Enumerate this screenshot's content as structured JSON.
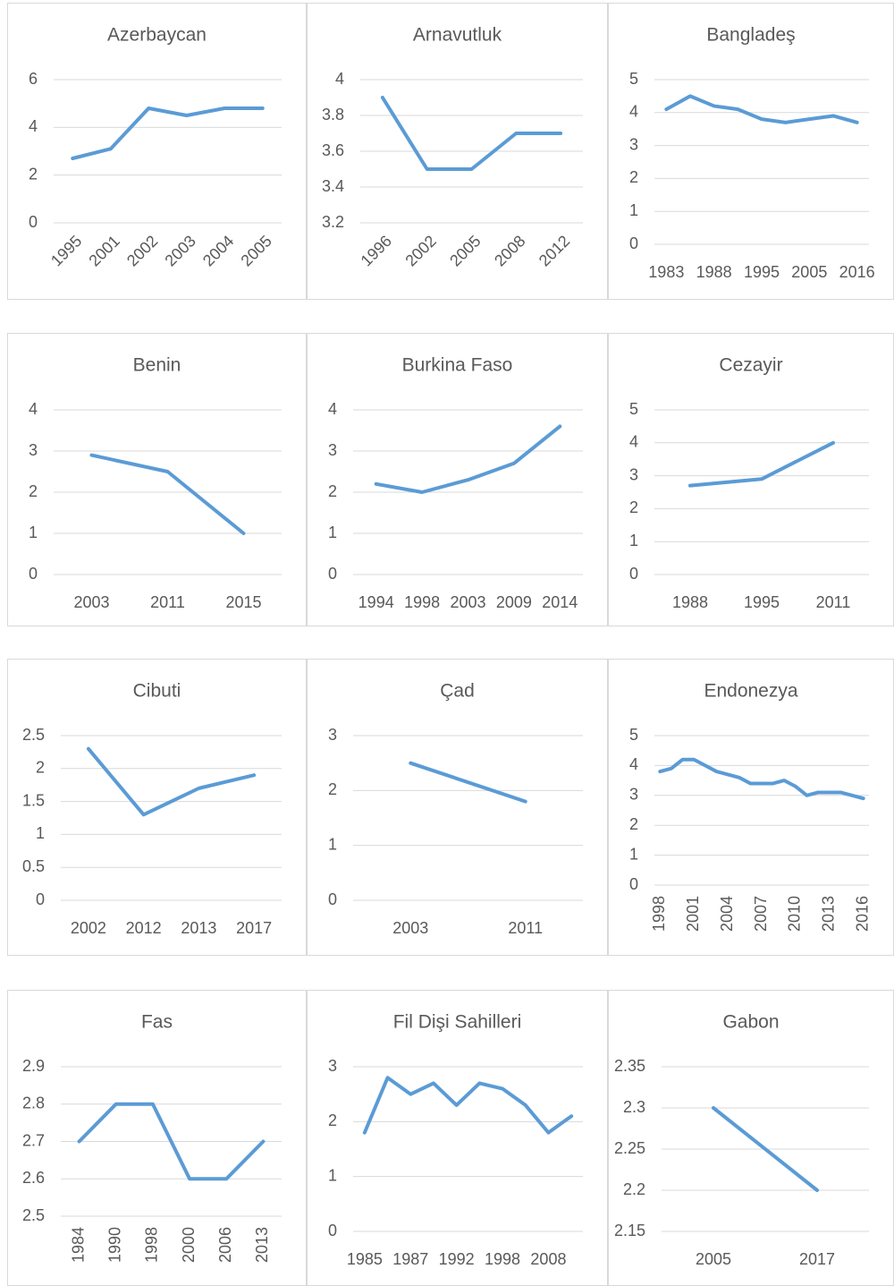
{
  "chart_data": [
    {
      "type": "line",
      "title": "Azerbaycan",
      "categories": [
        "1995",
        "2001",
        "2002",
        "2003",
        "2004",
        "2005"
      ],
      "values": [
        2.7,
        3.1,
        4.8,
        4.5,
        4.8,
        4.8
      ],
      "color": "#5b9bd5",
      "ylim": [
        0,
        6
      ],
      "yticks": [
        0,
        2,
        4,
        6
      ],
      "grid": true,
      "x_label_rotation": 45
    },
    {
      "type": "line",
      "title": "Arnavutluk",
      "categories": [
        "1996",
        "2002",
        "2005",
        "2008",
        "2012"
      ],
      "values": [
        3.9,
        3.5,
        3.5,
        3.7,
        3.7
      ],
      "color": "#5b9bd5",
      "ylim": [
        3.2,
        4
      ],
      "yticks": [
        3.2,
        3.4,
        3.6,
        3.8,
        4
      ],
      "grid": true,
      "x_label_rotation": 45
    },
    {
      "type": "line",
      "title": "Bangladeş",
      "categories": [
        "1983",
        null,
        "1988",
        null,
        "1995",
        null,
        "2005",
        null,
        "2016"
      ],
      "values": [
        4.1,
        4.5,
        4.2,
        4.1,
        3.8,
        3.7,
        3.8,
        3.9,
        3.7
      ],
      "color": "#5b9bd5",
      "ylim": [
        0,
        5
      ],
      "yticks": [
        0,
        1,
        2,
        3,
        4,
        5
      ],
      "grid": true,
      "x_label_rotation": 0
    },
    {
      "type": "line",
      "title": "Benin",
      "categories": [
        "2003",
        "2011",
        "2015"
      ],
      "values": [
        2.9,
        2.5,
        1.0
      ],
      "color": "#5b9bd5",
      "ylim": [
        0,
        4
      ],
      "yticks": [
        0,
        1,
        2,
        3,
        4
      ],
      "grid": true,
      "x_label_rotation": 0
    },
    {
      "type": "line",
      "title": "Burkina Faso",
      "categories": [
        "1994",
        "1998",
        "2003",
        "2009",
        "2014"
      ],
      "values": [
        2.2,
        2.0,
        2.3,
        2.7,
        3.6
      ],
      "color": "#5b9bd5",
      "ylim": [
        0,
        4
      ],
      "yticks": [
        0,
        1,
        2,
        3,
        4
      ],
      "grid": true,
      "x_label_rotation": 0
    },
    {
      "type": "line",
      "title": "Cezayir",
      "categories": [
        "1988",
        "1995",
        "2011"
      ],
      "values": [
        2.7,
        2.9,
        4.0
      ],
      "color": "#5b9bd5",
      "ylim": [
        0,
        5
      ],
      "yticks": [
        0,
        1,
        2,
        3,
        4,
        5
      ],
      "grid": true,
      "x_label_rotation": 0
    },
    {
      "type": "line",
      "title": "Cibuti",
      "categories": [
        "2002",
        "2012",
        "2013",
        "2017"
      ],
      "values": [
        2.3,
        1.3,
        1.7,
        1.9
      ],
      "color": "#5b9bd5",
      "ylim": [
        0,
        2.5
      ],
      "yticks": [
        0,
        0.5,
        1,
        1.5,
        2,
        2.5
      ],
      "grid": true,
      "x_label_rotation": 0
    },
    {
      "type": "line",
      "title": "Çad",
      "categories": [
        "2003",
        "2011"
      ],
      "values": [
        2.5,
        1.8
      ],
      "color": "#5b9bd5",
      "ylim": [
        0,
        3
      ],
      "yticks": [
        0,
        1,
        2,
        3
      ],
      "grid": true,
      "x_label_rotation": 0
    },
    {
      "type": "line",
      "title": "Endonezya",
      "categories": [
        "1998",
        null,
        null,
        "2001",
        null,
        null,
        "2004",
        null,
        null,
        "2007",
        null,
        null,
        "2010",
        null,
        null,
        "2013",
        null,
        null,
        "2016"
      ],
      "values": [
        3.8,
        3.9,
        4.2,
        4.2,
        4.0,
        3.8,
        3.7,
        3.6,
        3.4,
        3.4,
        3.4,
        3.5,
        3.3,
        3.0,
        3.1,
        3.1,
        3.1,
        3.0,
        2.9
      ],
      "color": "#5b9bd5",
      "ylim": [
        0,
        5
      ],
      "yticks": [
        0,
        1,
        2,
        3,
        4,
        5
      ],
      "grid": true,
      "x_label_rotation": 90
    },
    {
      "type": "line",
      "title": "Fas",
      "categories": [
        "1984",
        "1990",
        "1998",
        "2000",
        "2006",
        "2013"
      ],
      "values": [
        2.7,
        2.8,
        2.8,
        2.6,
        2.6,
        2.7
      ],
      "color": "#5b9bd5",
      "ylim": [
        2.5,
        2.9
      ],
      "yticks": [
        2.5,
        2.6,
        2.7,
        2.8,
        2.9
      ],
      "grid": true,
      "x_label_rotation": 90
    },
    {
      "type": "line",
      "title": "Fil Dişi Sahilleri",
      "categories": [
        "1985",
        null,
        "1987",
        null,
        "1992",
        null,
        "1998",
        null,
        "2008",
        null
      ],
      "values": [
        1.8,
        2.8,
        2.5,
        2.7,
        2.3,
        2.7,
        2.6,
        2.3,
        1.8,
        2.1
      ],
      "color": "#5b9bd5",
      "ylim": [
        0,
        3
      ],
      "yticks": [
        0,
        1,
        2,
        3
      ],
      "grid": true,
      "x_label_rotation": 0
    },
    {
      "type": "line",
      "title": "Gabon",
      "categories": [
        "2005",
        "2017"
      ],
      "values": [
        2.3,
        2.2
      ],
      "color": "#5b9bd5",
      "ylim": [
        2.15,
        2.35
      ],
      "yticks": [
        2.15,
        2.2,
        2.25,
        2.3,
        2.35
      ],
      "grid": true,
      "x_label_rotation": 0
    }
  ]
}
